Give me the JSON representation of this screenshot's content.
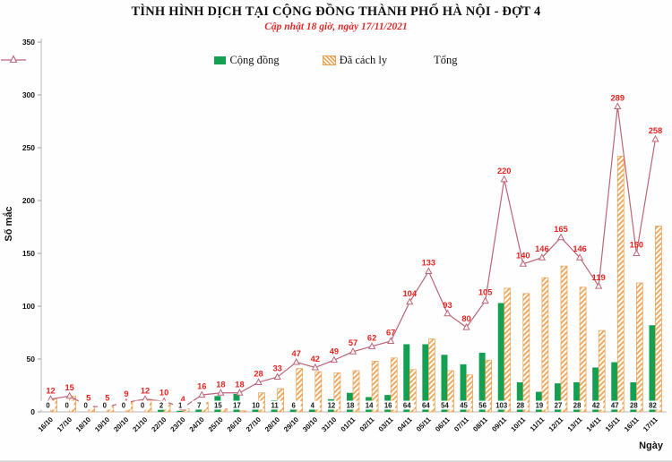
{
  "header": {
    "title": "TÌNH HÌNH DỊCH TẠI CỘNG ĐỒNG THÀNH PHỐ HÀ NỘI - ĐỢT 4",
    "subtitle": "Cập nhật 18 giờ, ngày 17/11/2021"
  },
  "chart_data": {
    "type": "bar",
    "subtype": "grouped-bars-with-line-overlay",
    "title": "TÌNH HÌNH DỊCH TẠI CỘNG ĐỒNG THÀNH PHỐ HÀ NỘI - ĐỢT 4",
    "subtitle": "Cập nhật 18 giờ, ngày 17/11/2021",
    "xlabel": "Ngày",
    "ylabel": "Số mắc",
    "ylim": [
      0,
      350
    ],
    "ytick_step": 50,
    "grid": false,
    "legend_position": "top",
    "categories": [
      "16/10",
      "17/10",
      "18/10",
      "19/10",
      "20/10",
      "21/10",
      "22/10",
      "23/10",
      "24/10",
      "25/10",
      "26/10",
      "27/10",
      "28/10",
      "29/10",
      "30/10",
      "31/10",
      "01/11",
      "02/11",
      "03/11",
      "04/11",
      "05/11",
      "06/11",
      "07/11",
      "08/11",
      "09/11",
      "10/11",
      "11/11",
      "12/11",
      "13/11",
      "14/11",
      "15/11",
      "16/11",
      "17/11"
    ],
    "series": [
      {
        "name": "Cộng đồng",
        "type": "bar",
        "style": "solid",
        "color": "#13a052",
        "label_color": "#1a1a1a",
        "labels_shown": true,
        "values": [
          0,
          0,
          0,
          0,
          0,
          0,
          2,
          1,
          7,
          15,
          17,
          10,
          11,
          6,
          4,
          12,
          18,
          14,
          16,
          64,
          64,
          54,
          45,
          56,
          103,
          28,
          19,
          27,
          28,
          42,
          47,
          28,
          82
        ]
      },
      {
        "name": "Đã cách ly",
        "type": "bar",
        "style": "hatched",
        "color": "#eba052",
        "fill_bg": "#fffdf7",
        "labels_shown": false,
        "values": [
          12,
          15,
          5,
          5,
          9,
          12,
          8,
          3,
          9,
          3,
          1,
          18,
          22,
          41,
          38,
          37,
          39,
          48,
          51,
          40,
          69,
          39,
          35,
          49,
          117,
          112,
          127,
          138,
          118,
          77,
          242,
          122,
          176
        ]
      },
      {
        "name": "Tổng",
        "type": "line",
        "marker": "open-triangle",
        "color": "#ba6679",
        "label_color": "#e52320",
        "labels_shown": true,
        "values": [
          12,
          15,
          5,
          5,
          9,
          12,
          10,
          4,
          16,
          18,
          18,
          28,
          33,
          47,
          42,
          49,
          57,
          62,
          67,
          104,
          133,
          93,
          80,
          105,
          220,
          140,
          146,
          165,
          146,
          119,
          289,
          150,
          258
        ]
      }
    ]
  }
}
